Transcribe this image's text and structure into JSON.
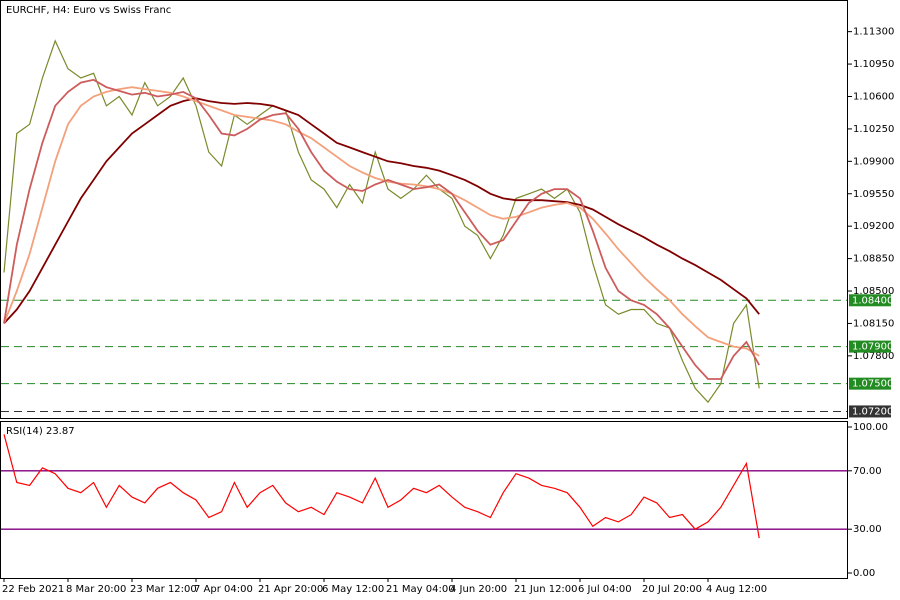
{
  "chart_data": [
    {
      "type": "line",
      "title": "EURCHF, H4:  Euro vs Swiss Franc",
      "categories": [
        "22 Feb 2021",
        null,
        null,
        null,
        null,
        "8 Mar 20:00",
        null,
        null,
        null,
        null,
        "23 Mar 12:00",
        null,
        null,
        null,
        null,
        "7 Apr 04:00",
        null,
        null,
        null,
        null,
        "21 Apr 20:00",
        null,
        null,
        null,
        null,
        "6 May 12:00",
        null,
        null,
        null,
        null,
        "21 May 04:00",
        null,
        null,
        null,
        null,
        "4 Jun 20:00",
        null,
        null,
        null,
        null,
        "21 Jun 12:00",
        null,
        null,
        null,
        null,
        "6 Jul 04:00",
        null,
        null,
        null,
        null,
        "20 Jul 20:00",
        null,
        null,
        null,
        null,
        "4 Aug 12:00",
        null,
        null,
        null,
        null
      ],
      "series": [
        {
          "color": "#7a8a2a",
          "values": [
            1.087,
            1.102,
            1.103,
            1.108,
            1.112,
            1.109,
            1.108,
            1.1085,
            1.105,
            1.106,
            1.104,
            1.1075,
            1.105,
            1.106,
            1.108,
            1.105,
            1.1,
            1.0985,
            1.104,
            1.103,
            1.104,
            1.105,
            1.1045,
            1.1,
            1.097,
            1.096,
            1.094,
            1.0965,
            1.0945,
            1.1,
            1.096,
            1.095,
            1.096,
            1.0975,
            1.096,
            1.095,
            1.092,
            1.091,
            1.0885,
            1.091,
            1.095,
            1.0955,
            1.096,
            1.095,
            1.096,
            1.0935,
            1.088,
            1.0835,
            1.0825,
            1.083,
            1.083,
            1.0815,
            1.081,
            1.0775,
            1.0745,
            1.073,
            1.075,
            1.0815,
            1.0835,
            1.0745
          ]
        },
        {
          "color": "#800000",
          "values": [
            1.0815,
            1.083,
            1.085,
            1.0875,
            1.09,
            1.0925,
            1.095,
            1.097,
            1.099,
            1.1005,
            1.102,
            1.103,
            1.104,
            1.105,
            1.1055,
            1.1058,
            1.1055,
            1.1053,
            1.1052,
            1.1053,
            1.1052,
            1.105,
            1.1045,
            1.104,
            1.103,
            1.102,
            1.101,
            1.1005,
            1.1,
            1.0995,
            1.099,
            1.0988,
            1.0985,
            1.0983,
            1.098,
            1.0975,
            1.097,
            1.0963,
            1.0955,
            1.095,
            1.0948,
            1.0948,
            1.0948,
            1.0947,
            1.0946,
            1.0943,
            1.0938,
            1.093,
            1.0922,
            1.0915,
            1.0908,
            1.09,
            1.0893,
            1.0885,
            1.0878,
            1.087,
            1.0862,
            1.0852,
            1.0842,
            1.0825
          ]
        },
        {
          "color": "#f4a07a",
          "values": [
            1.0815,
            1.085,
            1.089,
            1.094,
            1.099,
            1.103,
            1.105,
            1.106,
            1.1065,
            1.1068,
            1.107,
            1.1068,
            1.1066,
            1.1064,
            1.106,
            1.1055,
            1.105,
            1.1045,
            1.104,
            1.1038,
            1.1036,
            1.1034,
            1.103,
            1.1022,
            1.1015,
            1.1005,
            1.0995,
            1.0985,
            1.0978,
            1.0972,
            1.0968,
            1.0966,
            1.0965,
            1.0963,
            1.096,
            1.0955,
            1.0948,
            1.094,
            1.0932,
            1.0928,
            1.093,
            1.0935,
            1.094,
            1.0943,
            1.0945,
            1.094,
            1.0928,
            1.0912,
            1.0895,
            1.088,
            1.0865,
            1.0852,
            1.084,
            1.0825,
            1.0812,
            1.08,
            1.0795,
            1.079,
            1.0788,
            1.078
          ]
        },
        {
          "color": "#cd5c5c",
          "values": [
            1.0815,
            1.09,
            1.096,
            1.101,
            1.105,
            1.1065,
            1.1075,
            1.1078,
            1.107,
            1.1066,
            1.1062,
            1.1064,
            1.106,
            1.1062,
            1.1065,
            1.1058,
            1.104,
            1.102,
            1.1018,
            1.1025,
            1.1035,
            1.104,
            1.1042,
            1.1025,
            1.1,
            1.098,
            1.0968,
            1.096,
            1.0958,
            1.0965,
            1.097,
            1.0965,
            1.096,
            1.0962,
            1.0965,
            1.0955,
            1.0935,
            1.0915,
            1.09,
            1.0905,
            1.0925,
            1.0945,
            1.0955,
            1.096,
            1.096,
            1.095,
            1.0915,
            1.0875,
            1.085,
            1.084,
            1.0835,
            1.0825,
            1.081,
            1.079,
            1.077,
            1.0755,
            1.0755,
            1.078,
            1.0795,
            1.077
          ]
        }
      ],
      "ylim": [
        1.0714,
        1.1162
      ],
      "yticks": [
        {
          "value": 1.113,
          "label": "1.11300"
        },
        {
          "value": 1.1095,
          "label": "1.10950"
        },
        {
          "value": 1.106,
          "label": "1.10600"
        },
        {
          "value": 1.1025,
          "label": "1.10250"
        },
        {
          "value": 1.099,
          "label": "1.09900"
        },
        {
          "value": 1.0955,
          "label": "1.09550"
        },
        {
          "value": 1.092,
          "label": "1.09200"
        },
        {
          "value": 1.0885,
          "label": "1.08850"
        },
        {
          "value": 1.085,
          "label": "1.08500"
        },
        {
          "value": 1.0815,
          "label": "1.08150"
        },
        {
          "value": 1.078,
          "label": "1.07800"
        }
      ],
      "levels": [
        {
          "value": 1.084,
          "label": "1.08400",
          "color": "#228b22"
        },
        {
          "value": 1.079,
          "label": "1.07900",
          "color": "#228b22"
        },
        {
          "value": 1.075,
          "label": "1.07500",
          "color": "#228b22"
        },
        {
          "value": 1.072,
          "label": "1.07200",
          "color": "#333333"
        }
      ]
    },
    {
      "type": "line",
      "title": "RSI(14) 23.87",
      "series": [
        {
          "color": "#ff0000",
          "values": [
            95,
            62,
            60,
            72,
            68,
            58,
            55,
            62,
            45,
            60,
            52,
            48,
            58,
            62,
            55,
            50,
            38,
            42,
            62,
            45,
            55,
            60,
            48,
            42,
            45,
            40,
            55,
            52,
            48,
            65,
            45,
            50,
            58,
            55,
            60,
            52,
            45,
            42,
            38,
            55,
            68,
            65,
            60,
            58,
            55,
            45,
            32,
            38,
            35,
            40,
            52,
            48,
            38,
            40,
            30,
            35,
            45,
            60,
            75,
            23.87
          ]
        }
      ],
      "ylim": [
        0,
        100
      ],
      "yticks": [
        {
          "value": 100,
          "label": "100.00"
        },
        {
          "value": 70,
          "label": "70.00"
        },
        {
          "value": 30,
          "label": "30.00"
        },
        {
          "value": 0,
          "label": "0.00"
        }
      ],
      "levels": [
        {
          "value": 70,
          "color": "#800080"
        },
        {
          "value": 30,
          "color": "#800080"
        }
      ]
    }
  ]
}
